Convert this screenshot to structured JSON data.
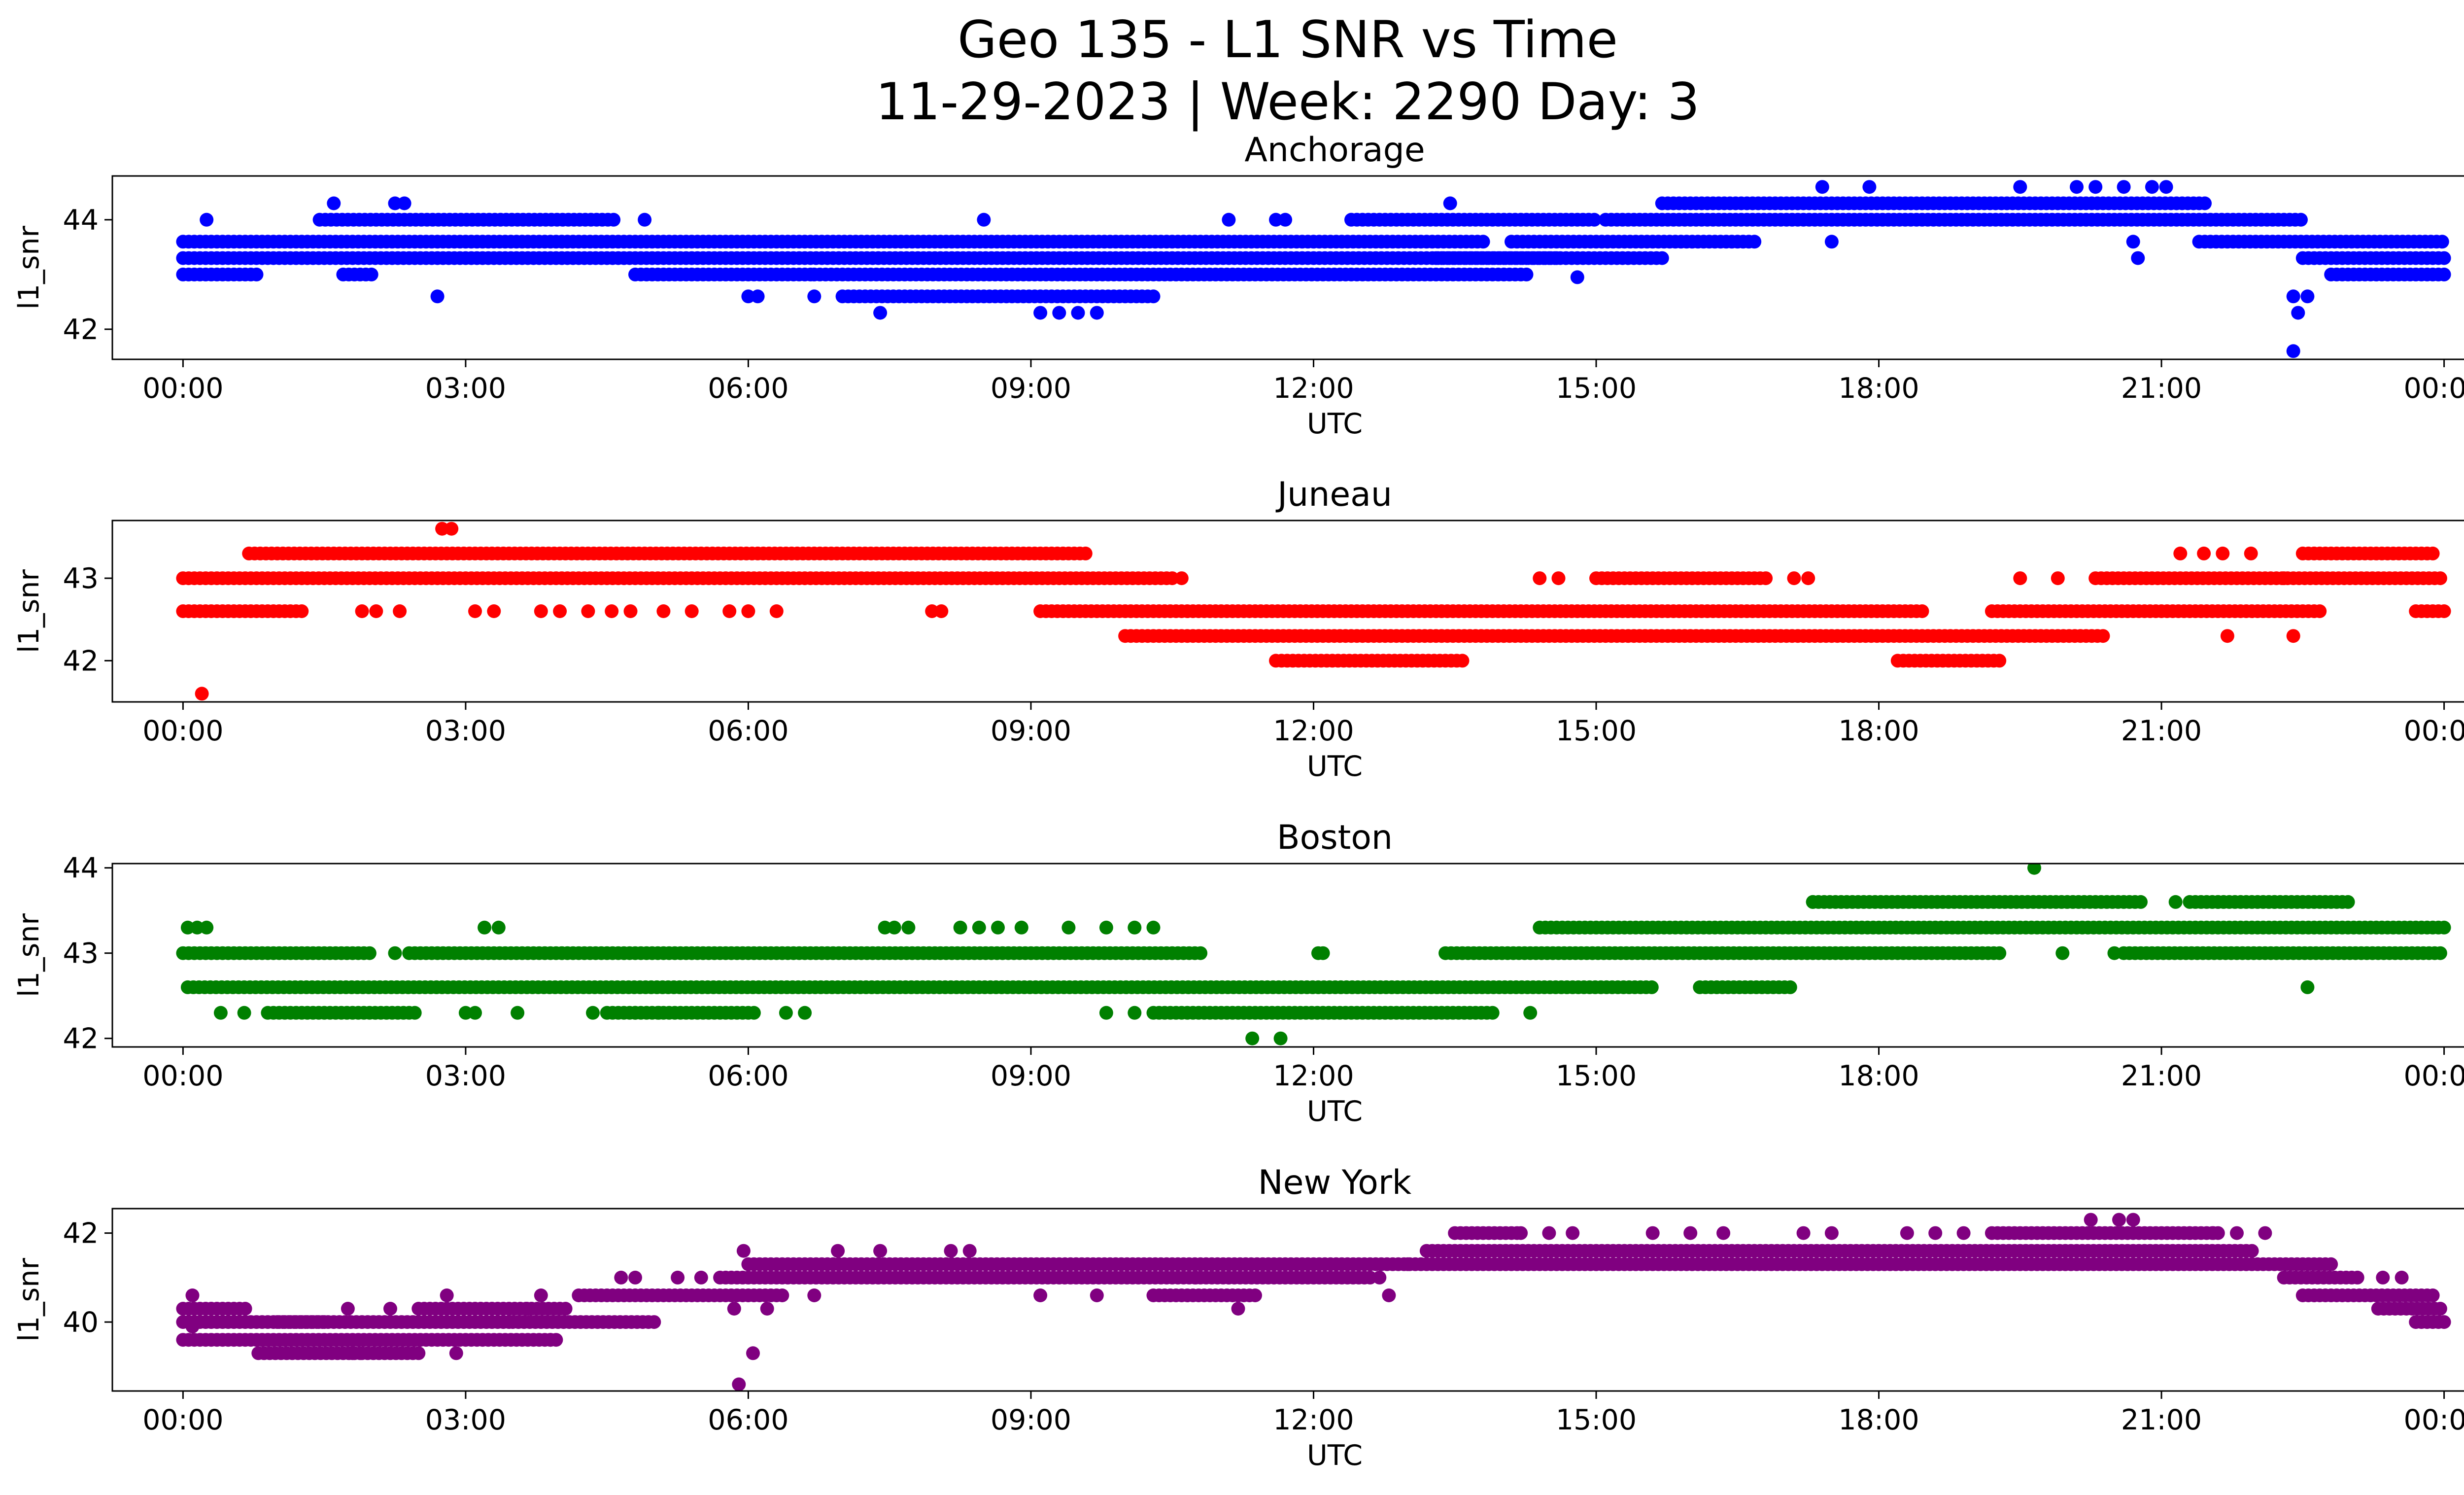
{
  "title": {
    "line1": "Geo 135 - L1 SNR vs Time",
    "line2": "11-29-2023 | Week: 2290 Day: 3"
  },
  "chart_data": [
    {
      "type": "scatter",
      "title": "Anchorage",
      "xlabel": "UTC",
      "ylabel": "l1_snr",
      "color": "#0000ff",
      "xlim_hours": [
        -0.75,
        25.2
      ],
      "ylim": [
        41.45,
        44.8
      ],
      "xticks": [
        "00:00",
        "03:00",
        "06:00",
        "09:00",
        "12:00",
        "15:00",
        "18:00",
        "21:00",
        "00:00"
      ],
      "yticks": [
        42,
        44
      ],
      "bands": [
        {
          "snr": 43.0,
          "segments": [
            [
              0.0,
              0.8
            ],
            [
              1.7,
              2.0
            ],
            [
              4.8,
              6.7
            ],
            [
              6.7,
              14.3
            ],
            [
              22.8,
              24.0
            ]
          ]
        },
        {
          "snr": 43.3,
          "segments": [
            [
              0.0,
              14.6
            ],
            [
              13.3,
              15.7
            ],
            [
              22.5,
              24.0
            ]
          ]
        },
        {
          "snr": 43.6,
          "segments": [
            [
              0.0,
              13.8
            ],
            [
              14.1,
              16.7
            ],
            [
              21.4,
              24.0
            ]
          ]
        },
        {
          "snr": 44.0,
          "segments": [
            [
              1.45,
              4.6
            ],
            [
              12.4,
              15.0
            ],
            [
              15.1,
              22.5
            ]
          ]
        },
        {
          "snr": 44.3,
          "segments": [
            [
              15.7,
              21.5
            ]
          ]
        },
        {
          "snr": 42.6,
          "segments": [
            [
              7.0,
              10.3
            ]
          ]
        }
      ],
      "points": [
        [
          0.25,
          44.0
        ],
        [
          1.6,
          44.3
        ],
        [
          2.25,
          44.3
        ],
        [
          2.35,
          44.3
        ],
        [
          2.7,
          42.6
        ],
        [
          4.9,
          44.0
        ],
        [
          6.0,
          42.6
        ],
        [
          6.1,
          42.6
        ],
        [
          6.7,
          42.6
        ],
        [
          7.4,
          42.3
        ],
        [
          8.5,
          44.0
        ],
        [
          9.1,
          42.3
        ],
        [
          9.3,
          42.3
        ],
        [
          9.5,
          42.3
        ],
        [
          9.7,
          42.3
        ],
        [
          11.1,
          44.0
        ],
        [
          11.6,
          44.0
        ],
        [
          11.7,
          44.0
        ],
        [
          13.45,
          44.3
        ],
        [
          14.8,
          42.95
        ],
        [
          17.4,
          44.6
        ],
        [
          17.5,
          43.6
        ],
        [
          17.9,
          44.6
        ],
        [
          19.5,
          44.6
        ],
        [
          20.1,
          44.6
        ],
        [
          20.3,
          44.6
        ],
        [
          20.6,
          44.6
        ],
        [
          20.7,
          43.6
        ],
        [
          20.75,
          43.3
        ],
        [
          20.9,
          44.6
        ],
        [
          21.05,
          44.6
        ],
        [
          22.4,
          42.6
        ],
        [
          22.45,
          42.3
        ],
        [
          22.4,
          41.6
        ],
        [
          22.55,
          42.6
        ]
      ]
    },
    {
      "type": "scatter",
      "title": "Juneau",
      "xlabel": "UTC",
      "ylabel": "l1_snr",
      "color": "#ff0000",
      "xlim_hours": [
        -0.75,
        25.2
      ],
      "ylim": [
        41.5,
        43.7
      ],
      "xticks": [
        "00:00",
        "03:00",
        "06:00",
        "09:00",
        "12:00",
        "15:00",
        "18:00",
        "21:00",
        "00:00"
      ],
      "yticks": [
        42,
        43
      ],
      "bands": [
        {
          "snr": 43.0,
          "segments": [
            [
              0.0,
              10.5
            ],
            [
              15.0,
              16.8
            ],
            [
              20.3,
              24.0
            ]
          ]
        },
        {
          "snr": 43.3,
          "segments": [
            [
              0.7,
              9.6
            ],
            [
              22.5,
              23.9
            ]
          ]
        },
        {
          "snr": 42.6,
          "segments": [
            [
              0.0,
              1.3
            ],
            [
              9.1,
              18.5
            ],
            [
              19.2,
              22.7
            ],
            [
              23.7,
              24.0
            ]
          ]
        },
        {
          "snr": 42.3,
          "segments": [
            [
              10.0,
              20.4
            ]
          ]
        },
        {
          "snr": 42.0,
          "segments": [
            [
              11.6,
              13.6
            ],
            [
              18.2,
              19.3
            ]
          ]
        }
      ],
      "points": [
        [
          0.2,
          41.6
        ],
        [
          2.75,
          43.6
        ],
        [
          2.85,
          43.6
        ],
        [
          1.9,
          42.6
        ],
        [
          2.05,
          42.6
        ],
        [
          2.3,
          42.6
        ],
        [
          3.1,
          42.6
        ],
        [
          3.3,
          42.6
        ],
        [
          3.8,
          42.6
        ],
        [
          4.0,
          42.6
        ],
        [
          4.3,
          42.6
        ],
        [
          4.55,
          42.6
        ],
        [
          4.75,
          42.6
        ],
        [
          5.1,
          42.6
        ],
        [
          5.4,
          42.6
        ],
        [
          5.8,
          42.6
        ],
        [
          6.0,
          42.6
        ],
        [
          6.3,
          42.6
        ],
        [
          7.95,
          42.6
        ],
        [
          8.05,
          42.6
        ],
        [
          10.6,
          43.0
        ],
        [
          14.4,
          43.0
        ],
        [
          14.6,
          43.0
        ],
        [
          17.1,
          43.0
        ],
        [
          17.25,
          43.0
        ],
        [
          19.5,
          43.0
        ],
        [
          19.9,
          43.0
        ],
        [
          21.2,
          43.3
        ],
        [
          21.45,
          43.3
        ],
        [
          21.65,
          43.3
        ],
        [
          21.95,
          43.3
        ],
        [
          21.7,
          42.3
        ],
        [
          22.4,
          42.3
        ],
        [
          22.3,
          43.0
        ]
      ]
    },
    {
      "type": "scatter",
      "title": "Boston",
      "xlabel": "UTC",
      "ylabel": "l1_snr",
      "color": "#008000",
      "xlim_hours": [
        -0.75,
        25.2
      ],
      "ylim": [
        41.9,
        44.05
      ],
      "xticks": [
        "00:00",
        "03:00",
        "06:00",
        "09:00",
        "12:00",
        "15:00",
        "18:00",
        "21:00",
        "00:00"
      ],
      "yticks": [
        42,
        43,
        44
      ],
      "bands": [
        {
          "snr": 43.0,
          "segments": [
            [
              0.0,
              2.0
            ],
            [
              2.4,
              10.8
            ],
            [
              13.4,
              19.3
            ],
            [
              20.6,
              24.0
            ]
          ]
        },
        {
          "snr": 42.6,
          "segments": [
            [
              0.05,
              15.6
            ],
            [
              16.1,
              17.1
            ]
          ]
        },
        {
          "snr": 42.3,
          "segments": [
            [
              0.9,
              2.5
            ],
            [
              4.5,
              6.1
            ],
            [
              10.3,
              13.9
            ]
          ]
        },
        {
          "snr": 43.3,
          "segments": [
            [
              14.4,
              24.0
            ]
          ]
        },
        {
          "snr": 43.6,
          "segments": [
            [
              17.3,
              20.8
            ],
            [
              21.3,
              23.0
            ]
          ]
        }
      ],
      "points": [
        [
          0.05,
          43.3
        ],
        [
          0.15,
          43.3
        ],
        [
          0.25,
          43.3
        ],
        [
          2.25,
          43.0
        ],
        [
          3.2,
          43.3
        ],
        [
          3.35,
          43.3
        ],
        [
          0.4,
          42.3
        ],
        [
          0.65,
          42.3
        ],
        [
          3.0,
          42.3
        ],
        [
          3.1,
          42.3
        ],
        [
          3.55,
          42.3
        ],
        [
          4.35,
          42.3
        ],
        [
          4.8,
          42.3
        ],
        [
          5.05,
          42.3
        ],
        [
          6.4,
          42.3
        ],
        [
          6.6,
          42.3
        ],
        [
          7.45,
          43.3
        ],
        [
          7.55,
          43.3
        ],
        [
          7.7,
          43.3
        ],
        [
          8.25,
          43.3
        ],
        [
          8.45,
          43.3
        ],
        [
          8.65,
          43.3
        ],
        [
          8.9,
          43.3
        ],
        [
          9.4,
          43.3
        ],
        [
          9.8,
          43.3
        ],
        [
          10.1,
          43.3
        ],
        [
          10.3,
          43.3
        ],
        [
          9.8,
          42.3
        ],
        [
          10.1,
          42.3
        ],
        [
          11.35,
          42.0
        ],
        [
          11.65,
          42.0
        ],
        [
          12.05,
          43.0
        ],
        [
          12.1,
          43.0
        ],
        [
          14.3,
          42.3
        ],
        [
          17.3,
          43.6
        ],
        [
          19.65,
          44.0
        ],
        [
          19.95,
          43.0
        ],
        [
          20.5,
          43.0
        ],
        [
          21.15,
          43.6
        ],
        [
          21.6,
          43.6
        ],
        [
          22.55,
          42.6
        ],
        [
          22.2,
          43.6
        ]
      ]
    },
    {
      "type": "scatter",
      "title": "New York",
      "xlabel": "UTC",
      "ylabel": "l1_snr",
      "color": "#800080",
      "xlim_hours": [
        -0.75,
        25.2
      ],
      "ylim": [
        38.45,
        42.55
      ],
      "xticks": [
        "00:00",
        "03:00",
        "06:00",
        "09:00",
        "12:00",
        "15:00",
        "18:00",
        "21:00",
        "00:00"
      ],
      "yticks": [
        40,
        42
      ],
      "bands": [
        {
          "snr": 40.3,
          "segments": [
            [
              0.0,
              0.7
            ],
            [
              2.5,
              4.1
            ],
            [
              23.3,
              24.0
            ]
          ]
        },
        {
          "snr": 40.0,
          "segments": [
            [
              0.0,
              1.5
            ],
            [
              1.0,
              3.5
            ],
            [
              3.5,
              5.0
            ],
            [
              23.7,
              24.0
            ]
          ]
        },
        {
          "snr": 39.6,
          "segments": [
            [
              0.0,
              4.0
            ]
          ]
        },
        {
          "snr": 39.3,
          "segments": [
            [
              0.8,
              1.9
            ],
            [
              1.9,
              2.55
            ]
          ]
        },
        {
          "snr": 40.6,
          "segments": [
            [
              4.2,
              6.4
            ],
            [
              10.3,
              11.4
            ],
            [
              22.5,
              23.9
            ]
          ]
        },
        {
          "snr": 41.0,
          "segments": [
            [
              5.7,
              12.6
            ],
            [
              22.3,
              23.1
            ]
          ]
        },
        {
          "snr": 41.3,
          "segments": [
            [
              6.0,
              22.8
            ]
          ]
        },
        {
          "snr": 41.6,
          "segments": [
            [
              13.2,
              22.0
            ]
          ]
        },
        {
          "snr": 42.0,
          "segments": [
            [
              13.5,
              14.2
            ],
            [
              19.2,
              21.6
            ]
          ]
        }
      ],
      "points": [
        [
          0.1,
          40.6
        ],
        [
          0.1,
          39.9
        ],
        [
          1.75,
          40.3
        ],
        [
          1.8,
          39.3
        ],
        [
          2.2,
          40.3
        ],
        [
          2.8,
          40.6
        ],
        [
          2.9,
          39.3
        ],
        [
          3.65,
          40.3
        ],
        [
          3.8,
          40.6
        ],
        [
          3.9,
          39.6
        ],
        [
          4.65,
          41.0
        ],
        [
          4.8,
          41.0
        ],
        [
          5.25,
          41.0
        ],
        [
          5.5,
          41.0
        ],
        [
          5.85,
          40.3
        ],
        [
          5.95,
          41.6
        ],
        [
          5.9,
          38.6
        ],
        [
          6.05,
          39.3
        ],
        [
          6.2,
          40.3
        ],
        [
          6.7,
          40.6
        ],
        [
          6.95,
          41.6
        ],
        [
          7.4,
          41.6
        ],
        [
          8.15,
          41.6
        ],
        [
          8.35,
          41.6
        ],
        [
          9.1,
          40.6
        ],
        [
          9.7,
          40.6
        ],
        [
          10.75,
          41.0
        ],
        [
          11.1,
          41.0
        ],
        [
          11.2,
          40.3
        ],
        [
          12.7,
          41.0
        ],
        [
          12.8,
          40.6
        ],
        [
          13.0,
          41.3
        ],
        [
          14.2,
          42.0
        ],
        [
          14.5,
          42.0
        ],
        [
          14.75,
          42.0
        ],
        [
          15.6,
          42.0
        ],
        [
          16.0,
          42.0
        ],
        [
          16.35,
          42.0
        ],
        [
          17.2,
          42.0
        ],
        [
          17.5,
          42.0
        ],
        [
          18.3,
          42.0
        ],
        [
          18.6,
          42.0
        ],
        [
          18.9,
          42.0
        ],
        [
          20.25,
          42.3
        ],
        [
          20.55,
          42.3
        ],
        [
          20.7,
          42.3
        ],
        [
          21.3,
          42.0
        ],
        [
          21.55,
          42.0
        ],
        [
          21.8,
          42.0
        ],
        [
          22.1,
          42.0
        ],
        [
          23.35,
          41.0
        ],
        [
          23.55,
          41.0
        ]
      ]
    }
  ]
}
